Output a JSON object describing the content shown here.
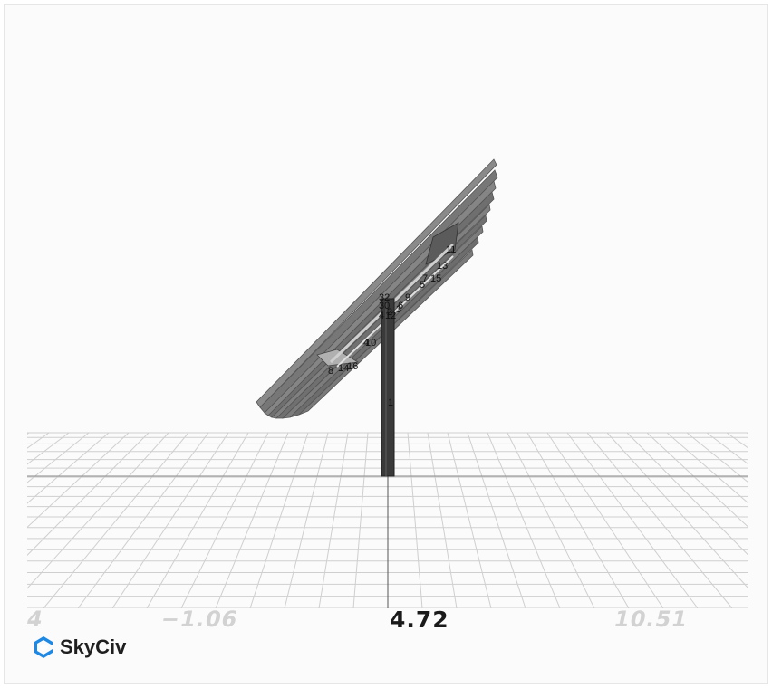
{
  "app": {
    "brand": "SkyCiv"
  },
  "axis": {
    "ticks": [
      "4",
      "−1.06",
      "4.72",
      "10.51"
    ]
  },
  "nodes": [
    "1",
    "32",
    "30",
    "9",
    "6",
    "3",
    "12",
    "4",
    "2",
    "4",
    "10",
    "8",
    "14",
    "16",
    "7",
    "15",
    "5",
    "13",
    "11"
  ],
  "colors": {
    "brand_blue": "#1e88e5",
    "grid": "#cfcfcf",
    "panel": "#7a7a7a",
    "post": "#3a3a3a"
  }
}
